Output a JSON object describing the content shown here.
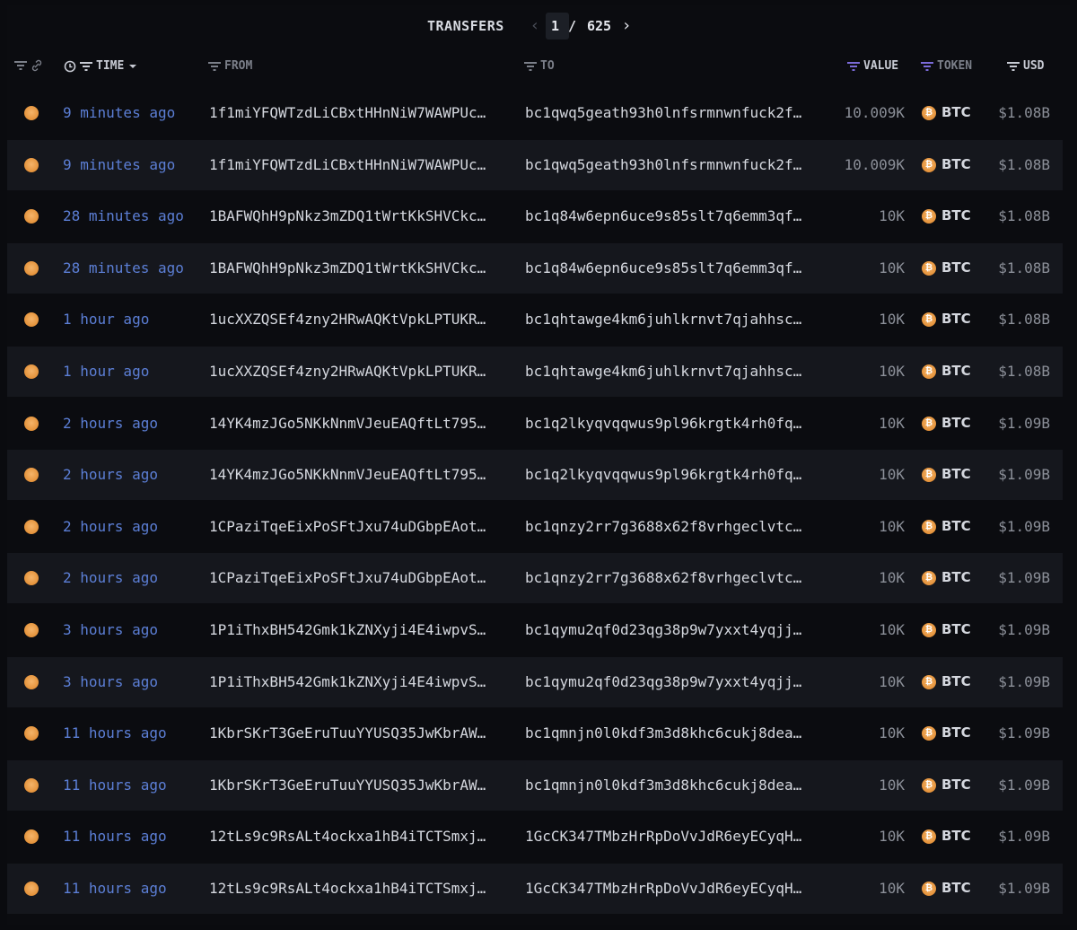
{
  "header": {
    "title": "TRANSFERS",
    "page_current": "1",
    "page_separator": "/",
    "page_total": "625"
  },
  "columns": {
    "time": "TIME",
    "from": "FROM",
    "to": "TO",
    "value": "VALUE",
    "token": "TOKEN",
    "usd": "USD"
  },
  "colors": {
    "time_link": "#5c7fd6",
    "row_alt": "#15171d",
    "btc": "#e4923a",
    "filter_active": "#7a6ad8"
  },
  "rows": [
    {
      "time": "9 minutes ago",
      "from": "1f1miYFQWTzdLiCBxtHHnNiW7WAWPUc…",
      "to": "bc1qwq5geath93h0lnfsrmnwnfuck2f…",
      "value": "10.009K",
      "token": "BTC",
      "usd": "$1.08B"
    },
    {
      "time": "9 minutes ago",
      "from": "1f1miYFQWTzdLiCBxtHHnNiW7WAWPUc…",
      "to": "bc1qwq5geath93h0lnfsrmnwnfuck2f…",
      "value": "10.009K",
      "token": "BTC",
      "usd": "$1.08B"
    },
    {
      "time": "28 minutes ago",
      "from": "1BAFWQhH9pNkz3mZDQ1tWrtKkSHVCkc…",
      "to": "bc1q84w6epn6uce9s85slt7q6emm3qf…",
      "value": "10K",
      "token": "BTC",
      "usd": "$1.08B"
    },
    {
      "time": "28 minutes ago",
      "from": "1BAFWQhH9pNkz3mZDQ1tWrtKkSHVCkc…",
      "to": "bc1q84w6epn6uce9s85slt7q6emm3qf…",
      "value": "10K",
      "token": "BTC",
      "usd": "$1.08B"
    },
    {
      "time": "1 hour ago",
      "from": "1ucXXZQSEf4zny2HRwAQKtVpkLPTUKR…",
      "to": "bc1qhtawge4km6juhlkrnvt7qjahhsc…",
      "value": "10K",
      "token": "BTC",
      "usd": "$1.08B"
    },
    {
      "time": "1 hour ago",
      "from": "1ucXXZQSEf4zny2HRwAQKtVpkLPTUKR…",
      "to": "bc1qhtawge4km6juhlkrnvt7qjahhsc…",
      "value": "10K",
      "token": "BTC",
      "usd": "$1.08B"
    },
    {
      "time": "2 hours ago",
      "from": "14YK4mzJGo5NKkNnmVJeuEAQftLt795…",
      "to": "bc1q2lkyqvqqwus9pl96krgtk4rh0fq…",
      "value": "10K",
      "token": "BTC",
      "usd": "$1.09B"
    },
    {
      "time": "2 hours ago",
      "from": "14YK4mzJGo5NKkNnmVJeuEAQftLt795…",
      "to": "bc1q2lkyqvqqwus9pl96krgtk4rh0fq…",
      "value": "10K",
      "token": "BTC",
      "usd": "$1.09B"
    },
    {
      "time": "2 hours ago",
      "from": "1CPaziTqeEixPoSFtJxu74uDGbpEAot…",
      "to": "bc1qnzy2rr7g3688x62f8vrhgeclvtc…",
      "value": "10K",
      "token": "BTC",
      "usd": "$1.09B"
    },
    {
      "time": "2 hours ago",
      "from": "1CPaziTqeEixPoSFtJxu74uDGbpEAot…",
      "to": "bc1qnzy2rr7g3688x62f8vrhgeclvtc…",
      "value": "10K",
      "token": "BTC",
      "usd": "$1.09B"
    },
    {
      "time": "3 hours ago",
      "from": "1P1iThxBH542Gmk1kZNXyji4E4iwpvS…",
      "to": "bc1qymu2qf0d23qg38p9w7yxxt4yqjj…",
      "value": "10K",
      "token": "BTC",
      "usd": "$1.09B"
    },
    {
      "time": "3 hours ago",
      "from": "1P1iThxBH542Gmk1kZNXyji4E4iwpvS…",
      "to": "bc1qymu2qf0d23qg38p9w7yxxt4yqjj…",
      "value": "10K",
      "token": "BTC",
      "usd": "$1.09B"
    },
    {
      "time": "11 hours ago",
      "from": "1KbrSKrT3GeEruTuuYYUSQ35JwKbrAW…",
      "to": "bc1qmnjn0l0kdf3m3d8khc6cukj8dea…",
      "value": "10K",
      "token": "BTC",
      "usd": "$1.09B"
    },
    {
      "time": "11 hours ago",
      "from": "1KbrSKrT3GeEruTuuYYUSQ35JwKbrAW…",
      "to": "bc1qmnjn0l0kdf3m3d8khc6cukj8dea…",
      "value": "10K",
      "token": "BTC",
      "usd": "$1.09B"
    },
    {
      "time": "11 hours ago",
      "from": "12tLs9c9RsALt4ockxa1hB4iTCTSmxj…",
      "to": "1GcCK347TMbzHrRpDoVvJdR6eyECyqH…",
      "value": "10K",
      "token": "BTC",
      "usd": "$1.09B"
    },
    {
      "time": "11 hours ago",
      "from": "12tLs9c9RsALt4ockxa1hB4iTCTSmxj…",
      "to": "1GcCK347TMbzHrRpDoVvJdR6eyECyqH…",
      "value": "10K",
      "token": "BTC",
      "usd": "$1.09B"
    }
  ]
}
